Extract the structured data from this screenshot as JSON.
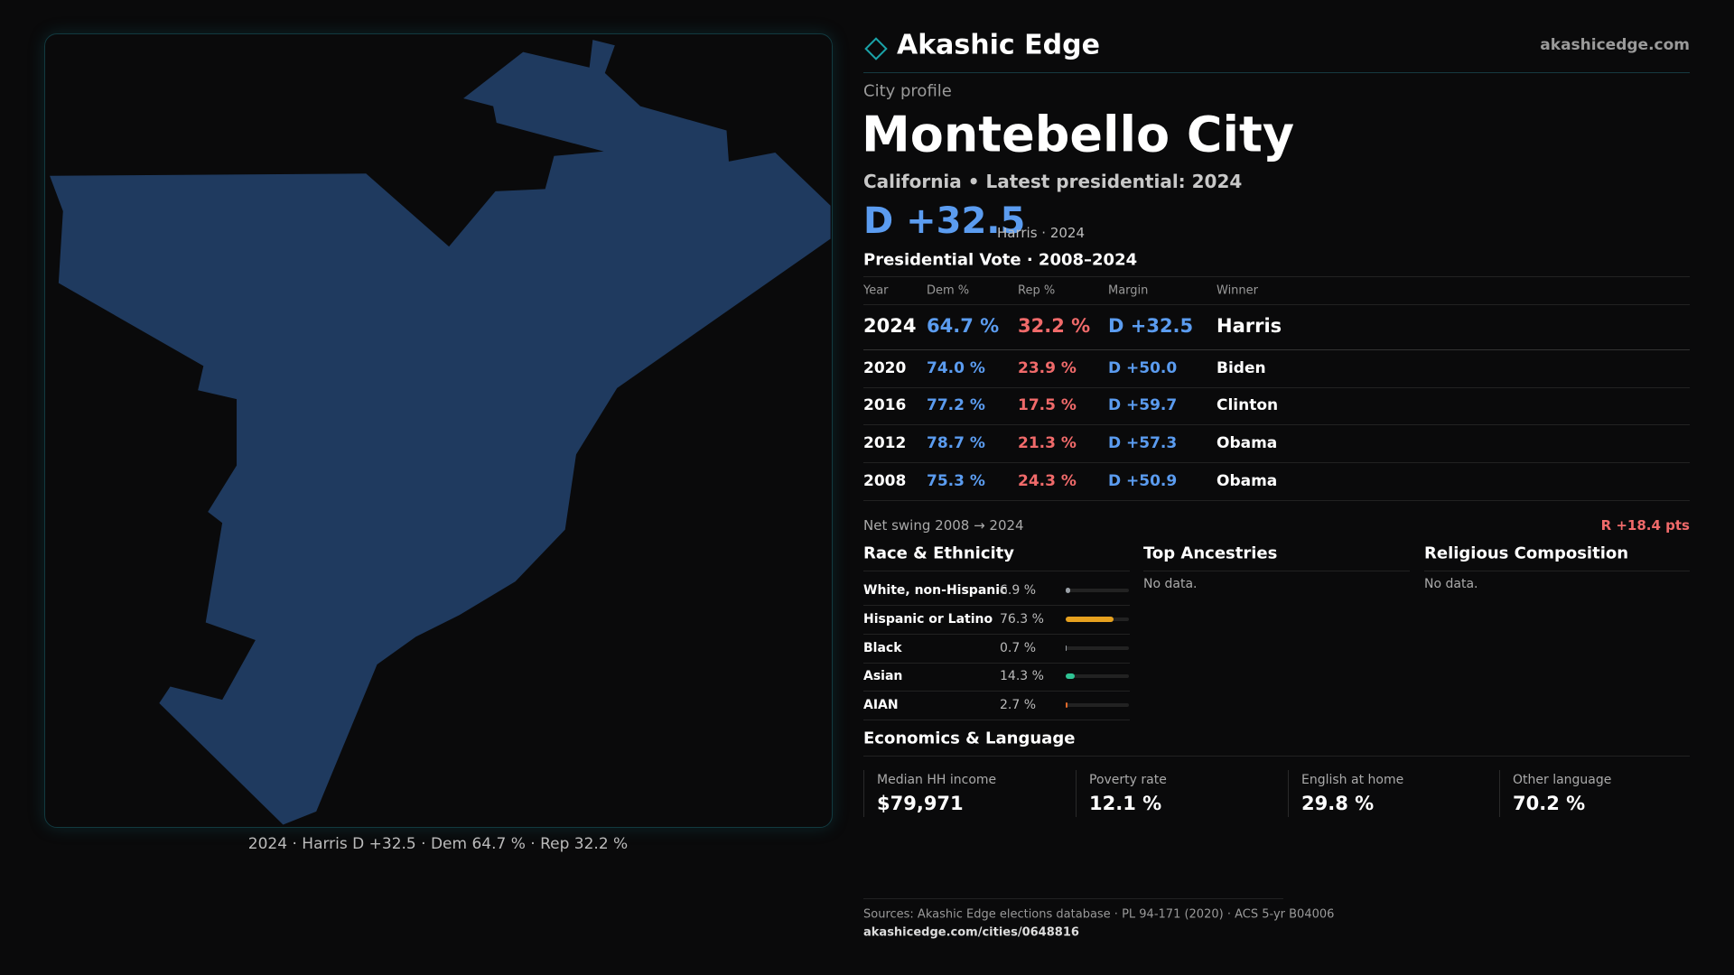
{
  "header": {
    "brand": "Akashic Edge",
    "site": "akashicedge.com"
  },
  "profile": {
    "kicker": "City profile",
    "name": "Montebello City",
    "subtitle": "California • Latest presidential: 2024",
    "margin": "D +32.5",
    "margin_note": "Harris · 2024"
  },
  "map_caption": "2024 · Harris D +32.5 · Dem 64.7 % · Rep 32.2 %",
  "vote_table": {
    "title": "Presidential Vote · 2008–2024",
    "columns": [
      "Year",
      "Dem %",
      "Rep %",
      "Margin",
      "Winner"
    ],
    "rows": [
      [
        "2024",
        "64.7 %",
        "32.2 %",
        "D +32.5",
        "Harris"
      ],
      [
        "2020",
        "74.0 %",
        "23.9 %",
        "D +50.0",
        "Biden"
      ],
      [
        "2016",
        "77.2 %",
        "17.5 %",
        "D +59.7",
        "Clinton"
      ],
      [
        "2012",
        "78.7 %",
        "21.3 %",
        "D +57.3",
        "Obama"
      ],
      [
        "2008",
        "75.3 %",
        "24.3 %",
        "D +50.9",
        "Obama"
      ]
    ]
  },
  "net_swing": {
    "label": "Net swing 2008 → 2024",
    "value": "R +18.4 pts"
  },
  "race": {
    "title": "Race & Ethnicity",
    "rows": [
      {
        "label": "White, non-Hispanic",
        "value": 6.9,
        "value_label": "6.9 %",
        "color": "#9aa0a6"
      },
      {
        "label": "Hispanic or Latino",
        "value": 76.3,
        "value_label": "76.3 %",
        "color": "#e6a11f"
      },
      {
        "label": "Black",
        "value": 0.7,
        "value_label": "0.7 %",
        "color": "#9aa0a6"
      },
      {
        "label": "Asian",
        "value": 14.3,
        "value_label": "14.3 %",
        "color": "#2fc394"
      },
      {
        "label": "AIAN",
        "value": 2.7,
        "value_label": "2.7 %",
        "color": "#e0692a"
      }
    ]
  },
  "ancestries": {
    "title": "Top Ancestries",
    "note": "No data."
  },
  "religion": {
    "title": "Religious Composition",
    "note": "No data."
  },
  "economics": {
    "title": "Economics & Language",
    "cards": [
      {
        "label": "Median HH income",
        "value": "$79,971"
      },
      {
        "label": "Poverty rate",
        "value": "12.1 %"
      },
      {
        "label": "English at home",
        "value": "29.8 %"
      },
      {
        "label": "Other language",
        "value": "70.2 %"
      }
    ]
  },
  "footer": {
    "sources": "Sources: Akashic Edge elections database · PL 94-171 (2020) · ACS 5-yr B04006",
    "url": "akashicedge.com/cities/0648816"
  }
}
